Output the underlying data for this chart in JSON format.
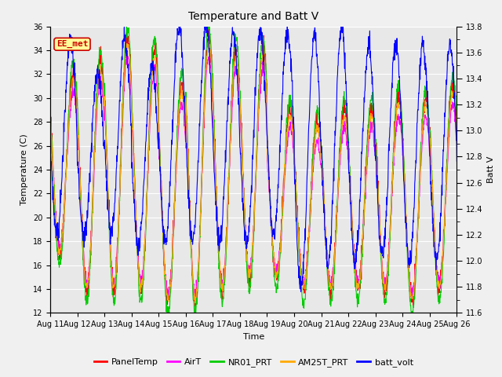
{
  "title": "Temperature and Batt V",
  "xlabel": "Time",
  "ylabel_left": "Temperature (C)",
  "ylabel_right": "Batt V",
  "annotation": "EE_met",
  "ylim_left": [
    12,
    36
  ],
  "ylim_right": [
    11.6,
    13.8
  ],
  "xlim": [
    0,
    15
  ],
  "xtick_labels": [
    "Aug 11",
    "Aug 12",
    "Aug 13",
    "Aug 14",
    "Aug 15",
    "Aug 16",
    "Aug 17",
    "Aug 18",
    "Aug 19",
    "Aug 20",
    "Aug 21",
    "Aug 22",
    "Aug 23",
    "Aug 24",
    "Aug 25",
    "Aug 26"
  ],
  "yticks_left": [
    12,
    14,
    16,
    18,
    20,
    22,
    24,
    26,
    28,
    30,
    32,
    34,
    36
  ],
  "yticks_right": [
    11.6,
    11.8,
    12.0,
    12.2,
    12.4,
    12.6,
    12.8,
    13.0,
    13.2,
    13.4,
    13.6,
    13.8
  ],
  "legend_entries": [
    "PanelTemp",
    "AirT",
    "NR01_PRT",
    "AM25T_PRT",
    "batt_volt"
  ],
  "line_colors": [
    "#ff0000",
    "#ff00ff",
    "#00cc00",
    "#ffaa00",
    "#0000ff"
  ],
  "bg_color": "#e8e8e8",
  "grid_color": "#ffffff",
  "fig_bg": "#f0f0f0",
  "annotation_bg": "#ffff99",
  "annotation_border": "#cc0000",
  "annotation_text_color": "#cc0000",
  "title_fontsize": 10,
  "label_fontsize": 8,
  "tick_fontsize": 7,
  "legend_fontsize": 8
}
